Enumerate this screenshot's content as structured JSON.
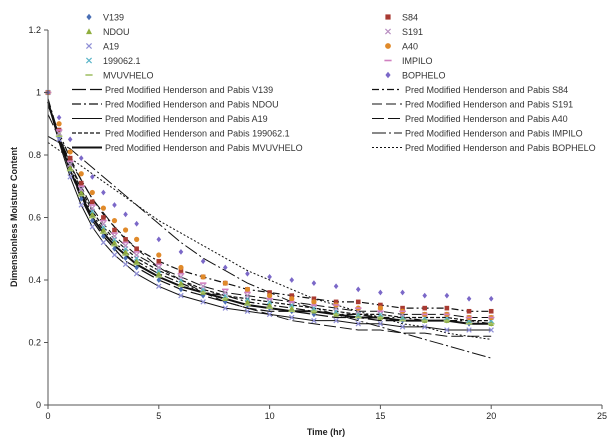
{
  "chart_data": {
    "type": "scatter",
    "title": "",
    "xlabel": "Time (hr)",
    "ylabel": "Dimensionless Moisture Content",
    "xlim": [
      0,
      25
    ],
    "ylim": [
      0,
      1.2
    ],
    "x_ticks": [
      "0",
      "5",
      "10",
      "15",
      "20",
      "25"
    ],
    "y_ticks": [
      "0",
      "0.2",
      "0.4",
      "0.6",
      "0.8",
      "1",
      "1.2"
    ],
    "grid": false,
    "legend_position": "top",
    "series": [
      {
        "name": "V139",
        "marker": "diamond",
        "color": "#4a6fb5",
        "x": [
          0,
          0.5,
          1,
          1.5,
          2,
          2.5,
          3,
          3.5,
          4,
          5,
          6,
          7,
          8,
          9,
          10,
          11,
          12,
          13,
          14,
          15,
          16,
          17,
          18,
          19,
          20
        ],
        "y": [
          1,
          0.86,
          0.75,
          0.66,
          0.59,
          0.54,
          0.5,
          0.47,
          0.44,
          0.4,
          0.37,
          0.35,
          0.33,
          0.32,
          0.31,
          0.3,
          0.29,
          0.29,
          0.28,
          0.28,
          0.27,
          0.27,
          0.27,
          0.26,
          0.26
        ]
      },
      {
        "name": "NDOU",
        "marker": "triangle",
        "color": "#8fae3e",
        "x": [
          0,
          0.5,
          1,
          1.5,
          2,
          2.5,
          3,
          3.5,
          4,
          5,
          6,
          7,
          8,
          9,
          10,
          11,
          12,
          13,
          14,
          15,
          16,
          17,
          18,
          19,
          20
        ],
        "y": [
          1,
          0.87,
          0.76,
          0.68,
          0.61,
          0.56,
          0.52,
          0.49,
          0.46,
          0.42,
          0.39,
          0.36,
          0.34,
          0.33,
          0.32,
          0.31,
          0.3,
          0.29,
          0.29,
          0.28,
          0.28,
          0.27,
          0.27,
          0.27,
          0.26
        ]
      },
      {
        "name": "A19",
        "marker": "x",
        "color": "#8e8ed6",
        "x": [
          0,
          0.5,
          1,
          1.5,
          2,
          2.5,
          3,
          3.5,
          4,
          5,
          6,
          7,
          8,
          9,
          10,
          11,
          12,
          13,
          14,
          15,
          16,
          17,
          18,
          19,
          20
        ],
        "y": [
          1,
          0.85,
          0.73,
          0.64,
          0.57,
          0.52,
          0.48,
          0.45,
          0.42,
          0.38,
          0.35,
          0.33,
          0.31,
          0.3,
          0.29,
          0.28,
          0.27,
          0.27,
          0.26,
          0.26,
          0.25,
          0.25,
          0.24,
          0.24,
          0.24
        ]
      },
      {
        "name": "199062.1",
        "marker": "x",
        "color": "#5bb5c8",
        "x": [
          0,
          0.5,
          1,
          1.5,
          2,
          2.5,
          3,
          3.5,
          4,
          5,
          6,
          7,
          8,
          9,
          10,
          11,
          12,
          13,
          14,
          15,
          16,
          17,
          18,
          19,
          20
        ],
        "y": [
          1,
          0.87,
          0.77,
          0.69,
          0.62,
          0.57,
          0.53,
          0.5,
          0.47,
          0.43,
          0.4,
          0.37,
          0.35,
          0.34,
          0.33,
          0.32,
          0.31,
          0.3,
          0.29,
          0.29,
          0.28,
          0.28,
          0.28,
          0.27,
          0.27
        ]
      },
      {
        "name": "MVUVHELO",
        "marker": "dash",
        "color": "#a4c26a",
        "x": [
          0,
          0.5,
          1,
          1.5,
          2,
          2.5,
          3,
          3.5,
          4,
          5,
          6,
          7,
          8,
          9,
          10,
          11,
          12,
          13,
          14,
          15,
          16,
          17,
          18,
          19,
          20
        ],
        "y": [
          1,
          0.86,
          0.75,
          0.67,
          0.6,
          0.55,
          0.51,
          0.48,
          0.45,
          0.41,
          0.38,
          0.36,
          0.34,
          0.32,
          0.31,
          0.3,
          0.3,
          0.29,
          0.28,
          0.28,
          0.27,
          0.27,
          0.27,
          0.26,
          0.26
        ]
      },
      {
        "name": "S84",
        "marker": "square",
        "color": "#a83a32",
        "x": [
          0,
          0.5,
          1,
          1.5,
          2,
          2.5,
          3,
          3.5,
          4,
          5,
          6,
          7,
          8,
          9,
          10,
          11,
          12,
          13,
          14,
          15,
          16,
          17,
          18,
          19,
          20
        ],
        "y": [
          1,
          0.88,
          0.79,
          0.71,
          0.65,
          0.6,
          0.56,
          0.53,
          0.5,
          0.46,
          0.43,
          0.41,
          0.39,
          0.37,
          0.36,
          0.35,
          0.34,
          0.33,
          0.33,
          0.32,
          0.31,
          0.31,
          0.31,
          0.3,
          0.3
        ]
      },
      {
        "name": "S191",
        "marker": "x",
        "color": "#b98fc2",
        "x": [
          0,
          0.5,
          1,
          1.5,
          2,
          2.5,
          3,
          3.5,
          4,
          5,
          6,
          7,
          8,
          9,
          10,
          11,
          12,
          13,
          14,
          15,
          16,
          17,
          18,
          19,
          20
        ],
        "y": [
          1,
          0.87,
          0.77,
          0.69,
          0.63,
          0.58,
          0.54,
          0.51,
          0.48,
          0.44,
          0.41,
          0.38,
          0.36,
          0.35,
          0.34,
          0.33,
          0.32,
          0.31,
          0.3,
          0.3,
          0.29,
          0.29,
          0.29,
          0.28,
          0.28
        ]
      },
      {
        "name": "A40",
        "marker": "circle",
        "color": "#e08a2a",
        "x": [
          0,
          0.5,
          1,
          1.5,
          2,
          2.5,
          3,
          3.5,
          4,
          5,
          6,
          7,
          8,
          9,
          10,
          11,
          12,
          13,
          14,
          15,
          16,
          17,
          18,
          19,
          20
        ],
        "y": [
          1,
          0.9,
          0.81,
          0.74,
          0.68,
          0.63,
          0.59,
          0.56,
          0.53,
          0.48,
          0.44,
          0.41,
          0.39,
          0.37,
          0.35,
          0.34,
          0.33,
          0.32,
          0.31,
          0.31,
          0.3,
          0.29,
          0.29,
          0.28,
          0.28
        ]
      },
      {
        "name": "IMPILO",
        "marker": "dash",
        "color": "#d080c0",
        "x": [
          0,
          0.5,
          1,
          1.5,
          2,
          2.5,
          3,
          3.5,
          4,
          5,
          6,
          7,
          8,
          9,
          10,
          11,
          12,
          13,
          14,
          15,
          16,
          17,
          18,
          19,
          20
        ],
        "y": [
          1,
          0.88,
          0.78,
          0.7,
          0.64,
          0.59,
          0.55,
          0.52,
          0.49,
          0.45,
          0.42,
          0.39,
          0.37,
          0.36,
          0.34,
          0.33,
          0.32,
          0.32,
          0.31,
          0.3,
          0.3,
          0.29,
          0.29,
          0.28,
          0.28
        ]
      },
      {
        "name": "BOPHELO",
        "marker": "diamond",
        "color": "#7b68c8",
        "x": [
          0,
          0.5,
          1,
          1.5,
          2,
          2.5,
          3,
          3.5,
          4,
          5,
          6,
          7,
          8,
          9,
          10,
          11,
          12,
          13,
          14,
          15,
          16,
          17,
          18,
          19,
          20
        ],
        "y": [
          1,
          0.92,
          0.85,
          0.79,
          0.73,
          0.68,
          0.64,
          0.61,
          0.58,
          0.53,
          0.49,
          0.46,
          0.44,
          0.42,
          0.41,
          0.4,
          0.39,
          0.38,
          0.37,
          0.36,
          0.36,
          0.35,
          0.35,
          0.34,
          0.34
        ]
      }
    ],
    "fits": [
      {
        "name": "Pred Modified Henderson and Pabis V139",
        "dash": "14,4",
        "width": 1.2,
        "x": [
          0,
          0.5,
          1,
          1.5,
          2,
          2.5,
          3,
          3.5,
          4,
          5,
          6,
          7,
          8,
          9,
          10,
          11,
          12,
          13,
          14,
          15,
          16,
          17,
          18,
          19,
          20
        ],
        "y": [
          0.97,
          0.85,
          0.75,
          0.66,
          0.59,
          0.54,
          0.5,
          0.46,
          0.44,
          0.4,
          0.37,
          0.35,
          0.33,
          0.31,
          0.3,
          0.3,
          0.29,
          0.28,
          0.28,
          0.27,
          0.27,
          0.27,
          0.27,
          0.26,
          0.26
        ]
      },
      {
        "name": "Pred Modified Henderson and Pabis NDOU",
        "dash": "9,3,2,3",
        "width": 1.2,
        "x": [
          0,
          0.5,
          1,
          1.5,
          2,
          2.5,
          3,
          3.5,
          4,
          5,
          6,
          7,
          8,
          9,
          10,
          11,
          12,
          13,
          14,
          15,
          16,
          17,
          18,
          19,
          20
        ],
        "y": [
          0.98,
          0.86,
          0.76,
          0.68,
          0.61,
          0.56,
          0.52,
          0.49,
          0.46,
          0.42,
          0.39,
          0.36,
          0.35,
          0.33,
          0.32,
          0.31,
          0.3,
          0.29,
          0.29,
          0.28,
          0.28,
          0.27,
          0.27,
          0.27,
          0.26
        ]
      },
      {
        "name": "Pred Modified Henderson and Pabis A19",
        "dash": "",
        "width": 1,
        "x": [
          0,
          0.5,
          1,
          1.5,
          2,
          2.5,
          3,
          3.5,
          4,
          5,
          6,
          7,
          8,
          9,
          10,
          11,
          12,
          13,
          14,
          15,
          16,
          17,
          18,
          19,
          20
        ],
        "y": [
          0.97,
          0.84,
          0.73,
          0.64,
          0.57,
          0.52,
          0.48,
          0.45,
          0.42,
          0.38,
          0.35,
          0.33,
          0.31,
          0.3,
          0.29,
          0.28,
          0.27,
          0.27,
          0.26,
          0.26,
          0.25,
          0.25,
          0.24,
          0.24,
          0.24
        ]
      },
      {
        "name": "Pred Modified Henderson and Pabis 199062.1",
        "dash": "4,2",
        "width": 1.2,
        "x": [
          0,
          0.5,
          1,
          1.5,
          2,
          2.5,
          3,
          3.5,
          4,
          5,
          6,
          7,
          8,
          9,
          10,
          11,
          12,
          13,
          14,
          15,
          16,
          17,
          18,
          19,
          20
        ],
        "y": [
          0.97,
          0.86,
          0.77,
          0.69,
          0.62,
          0.57,
          0.53,
          0.5,
          0.47,
          0.43,
          0.4,
          0.37,
          0.35,
          0.34,
          0.33,
          0.32,
          0.31,
          0.3,
          0.29,
          0.29,
          0.28,
          0.28,
          0.28,
          0.27,
          0.27
        ]
      },
      {
        "name": "Pred Modified Henderson and Pabis MVUVHELO",
        "dash": "",
        "width": 2,
        "x": [
          0,
          0.5,
          1,
          1.5,
          2,
          2.5,
          3,
          3.5,
          4,
          5,
          6,
          7,
          8,
          9,
          10,
          11,
          12,
          13,
          14,
          15,
          16,
          17,
          18,
          19,
          20
        ],
        "y": [
          0.97,
          0.85,
          0.75,
          0.67,
          0.6,
          0.55,
          0.51,
          0.48,
          0.45,
          0.41,
          0.38,
          0.36,
          0.34,
          0.32,
          0.31,
          0.3,
          0.3,
          0.29,
          0.28,
          0.28,
          0.27,
          0.27,
          0.27,
          0.26,
          0.26
        ]
      },
      {
        "name": "Pred Modified Henderson and Pabis S84",
        "dash": "7,3,2,3",
        "width": 1.2,
        "x": [
          0,
          0.5,
          1,
          1.5,
          2,
          2.5,
          3,
          3.5,
          4,
          5,
          6,
          7,
          8,
          9,
          10,
          11,
          12,
          13,
          14,
          15,
          16,
          17,
          18,
          19,
          20
        ],
        "y": [
          0.96,
          0.87,
          0.79,
          0.72,
          0.66,
          0.61,
          0.57,
          0.53,
          0.5,
          0.46,
          0.43,
          0.41,
          0.39,
          0.37,
          0.36,
          0.35,
          0.34,
          0.33,
          0.33,
          0.32,
          0.31,
          0.31,
          0.31,
          0.3,
          0.3
        ]
      },
      {
        "name": "Pred Modified Henderson and Pabis S191",
        "dash": "10,4",
        "width": 1,
        "x": [
          0,
          0.5,
          1,
          1.5,
          2,
          2.5,
          3,
          3.5,
          4,
          5,
          6,
          7,
          8,
          9,
          10,
          11,
          12,
          13,
          14,
          15,
          16,
          17,
          18,
          19,
          20
        ],
        "y": [
          0.96,
          0.86,
          0.77,
          0.7,
          0.63,
          0.58,
          0.54,
          0.51,
          0.48,
          0.44,
          0.41,
          0.38,
          0.36,
          0.35,
          0.34,
          0.33,
          0.32,
          0.31,
          0.3,
          0.3,
          0.29,
          0.29,
          0.29,
          0.28,
          0.28
        ]
      },
      {
        "name": "Pred Modified Henderson and Pabis A40",
        "dash": "12,4",
        "width": 1,
        "x": [
          0,
          1,
          2,
          3,
          4,
          5,
          6,
          7,
          8,
          9,
          10,
          11,
          12,
          13,
          14,
          15,
          16,
          17,
          18,
          19,
          20
        ],
        "y": [
          0.93,
          0.78,
          0.66,
          0.57,
          0.5,
          0.44,
          0.4,
          0.36,
          0.33,
          0.31,
          0.29,
          0.27,
          0.26,
          0.25,
          0.24,
          0.24,
          0.23,
          0.23,
          0.22,
          0.22,
          0.22
        ]
      },
      {
        "name": "Pred Modified Henderson and Pabis IMPILO",
        "dash": "14,3,2,3",
        "width": 1,
        "x": [
          0,
          1,
          2,
          3,
          4,
          5,
          6,
          7,
          8,
          9,
          10,
          11,
          12,
          13,
          14,
          15,
          16,
          17,
          18,
          19,
          20
        ],
        "y": [
          0.86,
          0.82,
          0.76,
          0.7,
          0.64,
          0.58,
          0.52,
          0.47,
          0.43,
          0.39,
          0.36,
          0.33,
          0.31,
          0.29,
          0.27,
          0.25,
          0.23,
          0.21,
          0.19,
          0.17,
          0.15
        ]
      },
      {
        "name": "Pred Modified Henderson and Pabis BOPHELO",
        "dash": "2,2",
        "width": 1,
        "x": [
          0,
          1,
          2,
          3,
          4,
          5,
          6,
          7,
          8,
          9,
          10,
          11,
          12,
          13,
          14,
          15,
          16,
          17,
          18,
          19,
          20
        ],
        "y": [
          0.84,
          0.79,
          0.74,
          0.69,
          0.64,
          0.59,
          0.55,
          0.51,
          0.47,
          0.43,
          0.4,
          0.37,
          0.34,
          0.32,
          0.3,
          0.28,
          0.26,
          0.25,
          0.23,
          0.22,
          0.21
        ]
      }
    ]
  }
}
